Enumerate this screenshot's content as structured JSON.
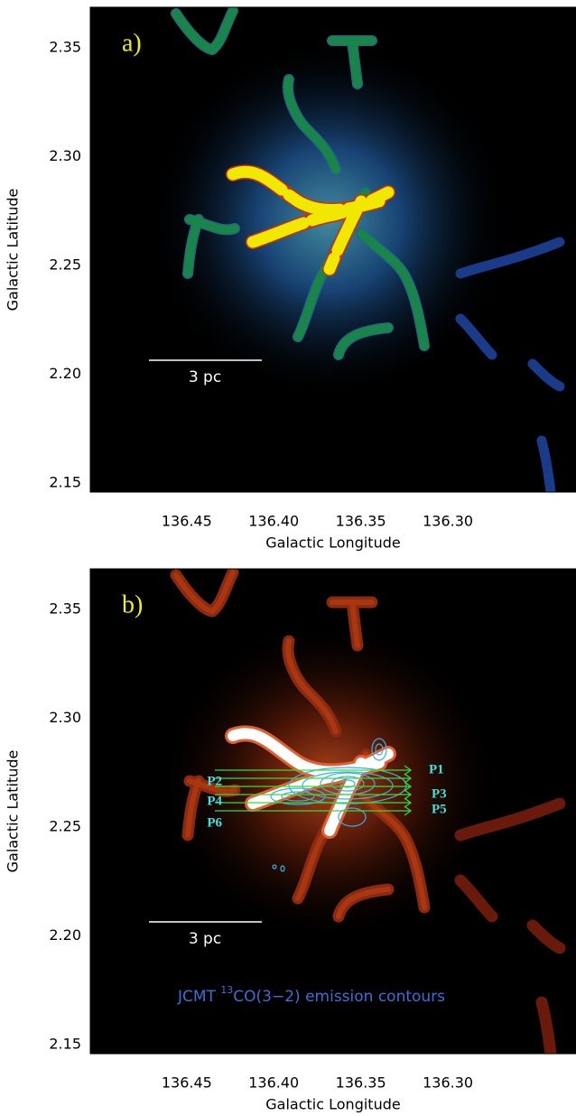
{
  "chart_data": [
    {
      "type": "image",
      "panel_label": "a)",
      "xlabel": "Galactic Longitude",
      "ylabel": "Galactic Latitude",
      "xlim": [
        136.5054,
        136.2264
      ],
      "ylim": [
        2.1459,
        2.3687
      ],
      "xticks": [
        136.45,
        {
          "value": 136.4,
          "label": "136.40"
        },
        136.35,
        {
          "value": 136.3,
          "label": "136.30"
        }
      ],
      "yticks": [
        2.15,
        {
          "value": 2.2,
          "label": "2.20"
        },
        2.25,
        {
          "value": 2.3,
          "label": "2.30"
        },
        2.35
      ],
      "scale_bar_label": "3 pc"
    },
    {
      "type": "image",
      "panel_label": "b)",
      "xlabel": "Galactic Longitude",
      "ylabel": "Galactic Latitude",
      "xlim": [
        136.5054,
        136.2264
      ],
      "ylim": [
        2.1459,
        2.3687
      ],
      "xticks": [
        136.45,
        {
          "value": 136.4,
          "label": "136.40"
        },
        136.35,
        {
          "value": 136.3,
          "label": "136.30"
        }
      ],
      "yticks": [
        2.15,
        {
          "value": 2.2,
          "label": "2.20"
        },
        2.25,
        {
          "value": 2.3,
          "label": "2.30"
        },
        2.35
      ],
      "scale_bar_label": "3 pc",
      "markers": [
        "P1",
        "P2",
        "P3",
        "P4",
        "P5",
        "P6"
      ],
      "contour_label": {
        "prefix": "JCMT ",
        "sup": "13",
        "suffix": "CO(3−2) emission contours"
      }
    }
  ]
}
